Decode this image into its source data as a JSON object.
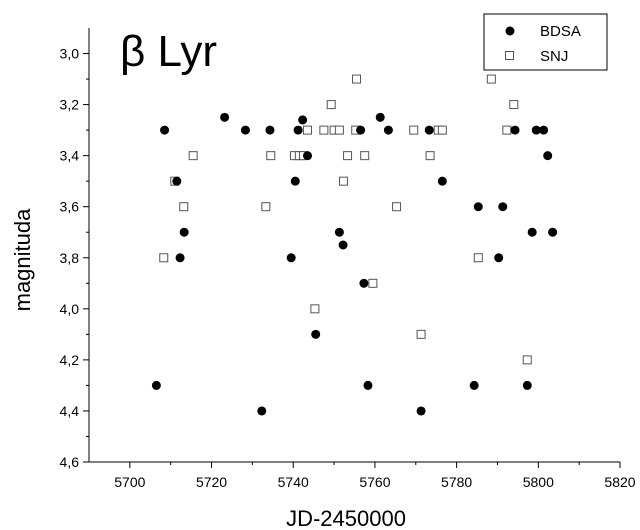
{
  "chart_data": {
    "type": "scatter",
    "annotation": "β Lyr",
    "xlabel": "JD-2450000",
    "ylabel": "magnituda",
    "xlim": [
      5690,
      5820
    ],
    "ylim": [
      4.6,
      2.9
    ],
    "y_inverted": true,
    "x_ticks": [
      "5700",
      "5720",
      "5740",
      "5760",
      "5780",
      "5800",
      "5820"
    ],
    "y_ticks": [
      "3,0",
      "3,2",
      "3,4",
      "3,6",
      "3,8",
      "4,0",
      "4,2",
      "4,4",
      "4,6"
    ],
    "grid": false,
    "legend_position": "top-right",
    "series": [
      {
        "name": "BDSA",
        "marker": "filled-circle",
        "color": "#000000",
        "points": [
          [
            5706.5,
            4.3
          ],
          [
            5708.5,
            3.3
          ],
          [
            5711.5,
            3.5
          ],
          [
            5712.3,
            3.8
          ],
          [
            5713.3,
            3.7
          ],
          [
            5723.2,
            3.25
          ],
          [
            5728.3,
            3.3
          ],
          [
            5732.3,
            4.4
          ],
          [
            5734.3,
            3.3
          ],
          [
            5739.5,
            3.8
          ],
          [
            5740.5,
            3.5
          ],
          [
            5741.2,
            3.3
          ],
          [
            5742.3,
            3.26
          ],
          [
            5743.5,
            3.4
          ],
          [
            5745.5,
            4.1
          ],
          [
            5751.3,
            3.7
          ],
          [
            5752.2,
            3.75
          ],
          [
            5756.5,
            3.3
          ],
          [
            5757.3,
            3.9
          ],
          [
            5758.3,
            4.3
          ],
          [
            5761.3,
            3.25
          ],
          [
            5763.3,
            3.3
          ],
          [
            5771.3,
            4.4
          ],
          [
            5773.3,
            3.3
          ],
          [
            5776.5,
            3.5
          ],
          [
            5784.3,
            4.3
          ],
          [
            5785.3,
            3.6
          ],
          [
            5790.3,
            3.8
          ],
          [
            5791.3,
            3.6
          ],
          [
            5794.3,
            3.3
          ],
          [
            5797.3,
            4.3
          ],
          [
            5798.5,
            3.7
          ],
          [
            5799.5,
            3.3
          ],
          [
            5801.3,
            3.3
          ],
          [
            5802.3,
            3.4
          ],
          [
            5803.5,
            3.7
          ]
        ]
      },
      {
        "name": "SNJ",
        "marker": "open-square",
        "color": "#000000",
        "points": [
          [
            5708.3,
            3.8
          ],
          [
            5711.0,
            3.5
          ],
          [
            5713.2,
            3.6
          ],
          [
            5715.5,
            3.4
          ],
          [
            5733.3,
            3.6
          ],
          [
            5734.5,
            3.4
          ],
          [
            5740.3,
            3.4
          ],
          [
            5741.5,
            3.4
          ],
          [
            5742.5,
            3.4
          ],
          [
            5743.5,
            3.3
          ],
          [
            5745.3,
            4.0
          ],
          [
            5747.5,
            3.3
          ],
          [
            5749.3,
            3.2
          ],
          [
            5750.0,
            3.3
          ],
          [
            5751.3,
            3.3
          ],
          [
            5752.3,
            3.5
          ],
          [
            5753.3,
            3.4
          ],
          [
            5755.5,
            3.1
          ],
          [
            5755.3,
            3.3
          ],
          [
            5757.5,
            3.4
          ],
          [
            5759.5,
            3.9
          ],
          [
            5765.3,
            3.6
          ],
          [
            5769.5,
            3.3
          ],
          [
            5771.3,
            4.1
          ],
          [
            5773.5,
            3.4
          ],
          [
            5775.5,
            3.3
          ],
          [
            5776.5,
            3.3
          ],
          [
            5785.3,
            3.8
          ],
          [
            5788.5,
            3.1
          ],
          [
            5792.3,
            3.3
          ],
          [
            5794.0,
            3.2
          ],
          [
            5797.3,
            4.2
          ]
        ]
      }
    ]
  }
}
